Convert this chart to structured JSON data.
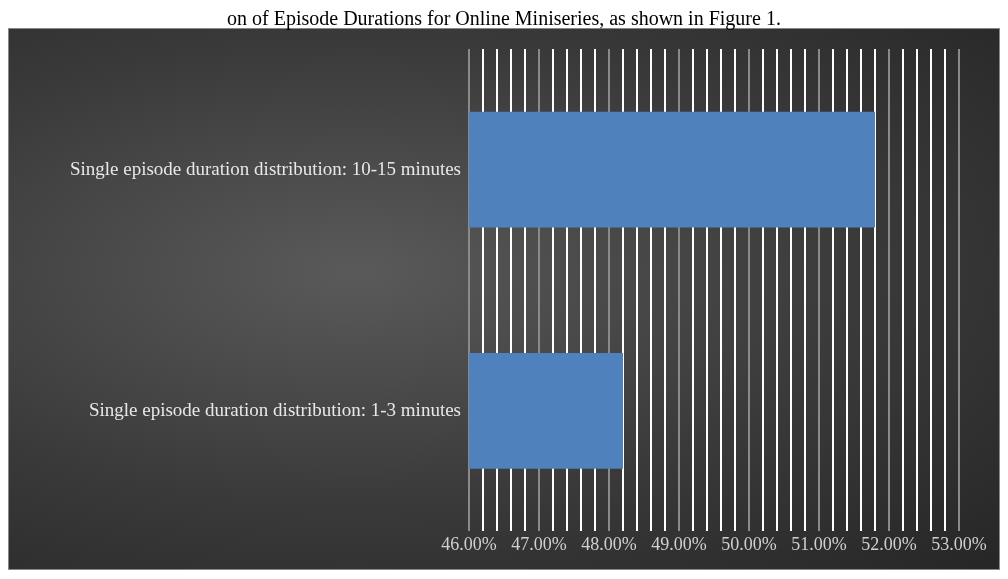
{
  "chart_data": {
    "type": "bar",
    "orientation": "horizontal",
    "annotations": [
      "on of Episode Durations for Online Miniseries, as shown in Figure 1."
    ],
    "categories": [
      "Single episode duration distribution: 10-15 minutes",
      "Single episode duration distribution: 1-3 minutes"
    ],
    "values": [
      51.8,
      48.2
    ],
    "color": "#4f81bd",
    "xlim": [
      46,
      53
    ],
    "xticks": [
      {
        "value": 46,
        "label": "46.00%"
      },
      {
        "value": 46.2,
        "label": null
      },
      {
        "value": 46.4,
        "label": null
      },
      {
        "value": 46.6,
        "label": null
      },
      {
        "value": 46.8,
        "label": null
      },
      {
        "value": 47,
        "label": "47.00%"
      },
      {
        "value": 47.2,
        "label": null
      },
      {
        "value": 47.4,
        "label": null
      },
      {
        "value": 47.6,
        "label": null
      },
      {
        "value": 47.8,
        "label": null
      },
      {
        "value": 48,
        "label": "48.00%"
      },
      {
        "value": 48.2,
        "label": null
      },
      {
        "value": 48.4,
        "label": null
      },
      {
        "value": 48.6,
        "label": null
      },
      {
        "value": 48.8,
        "label": null
      },
      {
        "value": 49,
        "label": "49.00%"
      },
      {
        "value": 49.2,
        "label": null
      },
      {
        "value": 49.4,
        "label": null
      },
      {
        "value": 49.6,
        "label": null
      },
      {
        "value": 49.8,
        "label": null
      },
      {
        "value": 50,
        "label": "50.00%"
      },
      {
        "value": 50.2,
        "label": null
      },
      {
        "value": 50.4,
        "label": null
      },
      {
        "value": 50.6,
        "label": null
      },
      {
        "value": 50.8,
        "label": null
      },
      {
        "value": 51,
        "label": "51.00%"
      },
      {
        "value": 51.2,
        "label": null
      },
      {
        "value": 51.4,
        "label": null
      },
      {
        "value": 51.6,
        "label": null
      },
      {
        "value": 51.8,
        "label": null
      },
      {
        "value": 52,
        "label": "52.00%"
      },
      {
        "value": 52.2,
        "label": null
      },
      {
        "value": 52.4,
        "label": null
      },
      {
        "value": 52.6,
        "label": null
      },
      {
        "value": 52.8,
        "label": null
      },
      {
        "value": 53,
        "label": "53.00%"
      }
    ],
    "grid": "x",
    "legend": false
  }
}
